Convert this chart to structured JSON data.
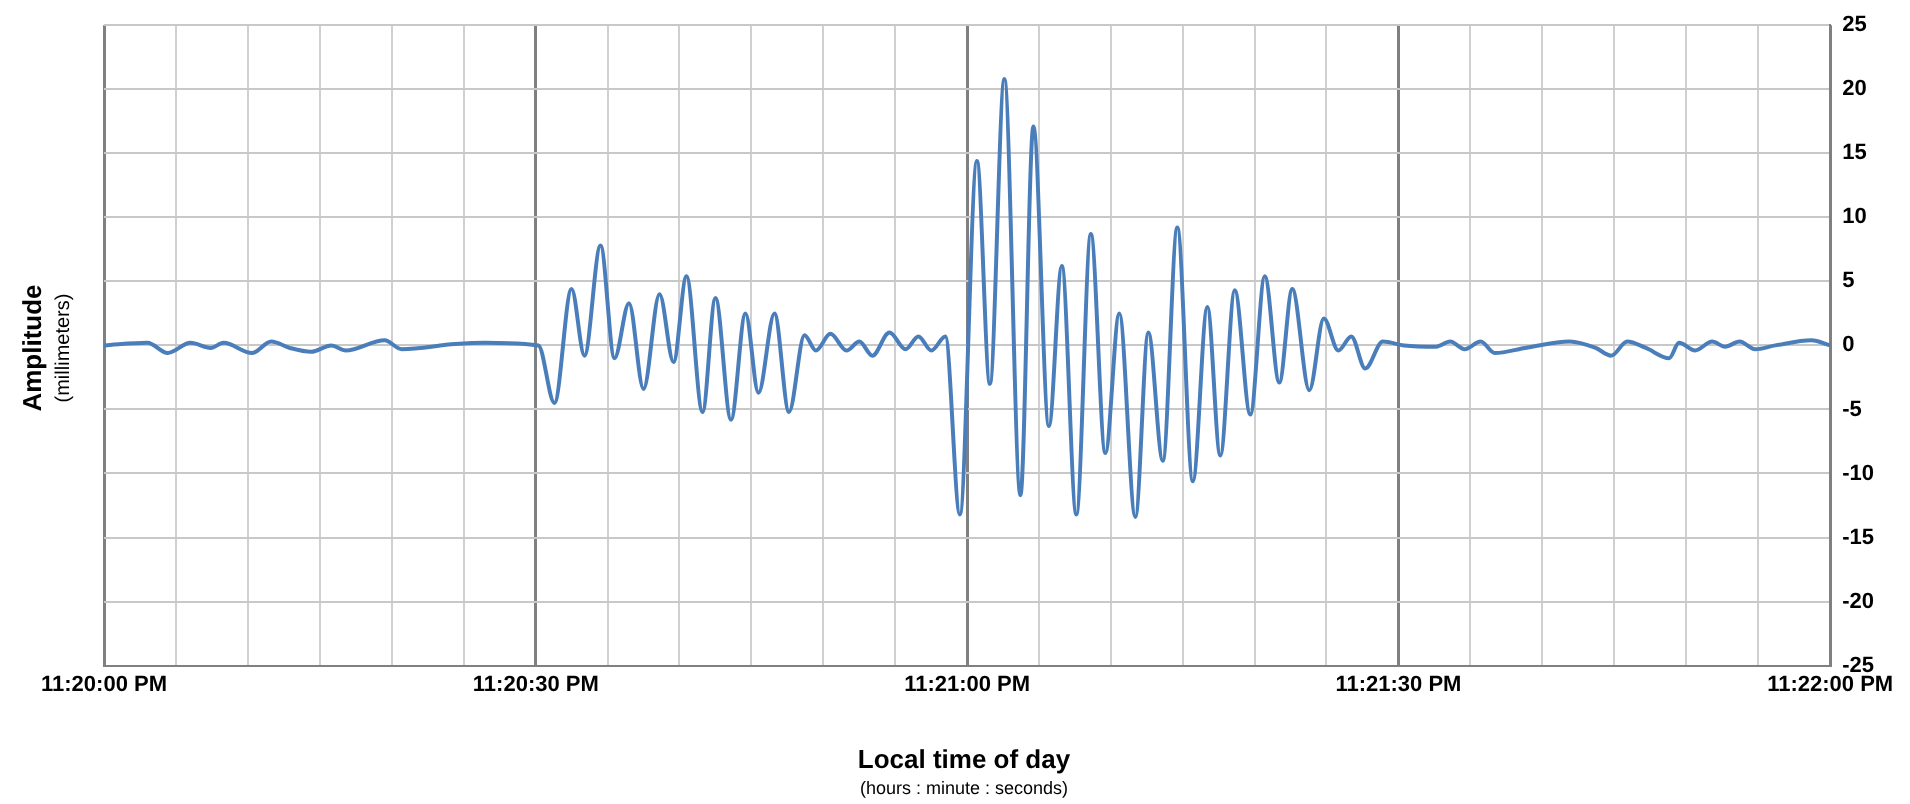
{
  "chart_data": {
    "type": "line",
    "xlabel": "Local time of day",
    "ylabel": "Amplitude",
    "annotations": [
      "(millimeters)",
      "(hours : minute : seconds)"
    ],
    "xlim": [
      23.33333,
      23.36667
    ],
    "xticks": [
      {
        "value": 23.33333,
        "label": "11:20:00 PM"
      },
      {
        "value": 23.33472,
        "label": null
      },
      {
        "value": 23.33611,
        "label": null
      },
      {
        "value": 23.3375,
        "label": null
      },
      {
        "value": 23.33889,
        "label": null
      },
      {
        "value": 23.34028,
        "label": null
      },
      {
        "value": 23.34167,
        "label": "11:20:30 PM"
      },
      {
        "value": 23.34306,
        "label": null
      },
      {
        "value": 23.34444,
        "label": null
      },
      {
        "value": 23.34583,
        "label": null
      },
      {
        "value": 23.34722,
        "label": null
      },
      {
        "value": 23.34861,
        "label": null
      },
      {
        "value": 23.35,
        "label": "11:21:00 PM"
      },
      {
        "value": 23.35139,
        "label": null
      },
      {
        "value": 23.35278,
        "label": null
      },
      {
        "value": 23.35417,
        "label": null
      },
      {
        "value": 23.35556,
        "label": null
      },
      {
        "value": 23.35694,
        "label": null
      },
      {
        "value": 23.35833,
        "label": "11:21:30 PM"
      },
      {
        "value": 23.35972,
        "label": null
      },
      {
        "value": 23.36111,
        "label": null
      },
      {
        "value": 23.3625,
        "label": null
      },
      {
        "value": 23.36389,
        "label": null
      },
      {
        "value": 23.36528,
        "label": null
      },
      {
        "value": 23.36667,
        "label": "11:22:00 PM"
      }
    ],
    "ylim": [
      -25,
      25
    ],
    "yticks": [
      -25,
      -20,
      -15,
      -10,
      -5,
      0,
      5,
      10,
      15,
      20,
      25
    ],
    "grid": true,
    "legend": false,
    "marker": "none",
    "line_style": "solid",
    "series": [
      {
        "color": "#4a7ebb",
        "x": [
          23.33333,
          23.33417,
          23.33456,
          23.335,
          23.33539,
          23.33564,
          23.33619,
          23.33656,
          23.33692,
          23.33733,
          23.33772,
          23.338,
          23.33875,
          23.33908,
          23.34011,
          23.34069,
          23.34172,
          23.34203,
          23.34236,
          23.34261,
          23.34292,
          23.34319,
          23.34347,
          23.34375,
          23.34406,
          23.34433,
          23.34458,
          23.34489,
          23.34514,
          23.34544,
          23.34572,
          23.34597,
          23.34628,
          23.34656,
          23.34686,
          23.34708,
          23.34736,
          23.34767,
          23.34792,
          23.34817,
          23.3485,
          23.34881,
          23.34906,
          23.34931,
          23.34958,
          23.34986,
          23.35019,
          23.35044,
          23.35072,
          23.35103,
          23.35128,
          23.35158,
          23.35183,
          23.35211,
          23.35239,
          23.35267,
          23.35294,
          23.35325,
          23.3535,
          23.35378,
          23.35406,
          23.35436,
          23.35464,
          23.35489,
          23.35517,
          23.35547,
          23.35575,
          23.35603,
          23.35628,
          23.35661,
          23.35689,
          23.35717,
          23.35742,
          23.35769,
          23.35803,
          23.35844,
          23.35906,
          23.35933,
          23.35961,
          23.35992,
          23.36019,
          23.36078,
          23.36164,
          23.36214,
          23.36244,
          23.36275,
          23.36311,
          23.36356,
          23.36375,
          23.36406,
          23.36439,
          23.36464,
          23.36492,
          23.36522,
          23.36561,
          23.36631,
          23.36667
        ],
        "values": [
          0,
          0.2,
          -0.6,
          0.2,
          -0.2,
          0.2,
          -0.6,
          0.3,
          -0.2,
          -0.5,
          0,
          -0.4,
          0.4,
          -0.3,
          0.1,
          0.2,
          0,
          -4.5,
          4.4,
          -0.8,
          7.8,
          -1,
          3.3,
          -3.4,
          4,
          -1.3,
          5.4,
          -5.2,
          3.7,
          -5.8,
          2.5,
          -3.7,
          2.5,
          -5.2,
          0.8,
          -0.4,
          0.9,
          -0.4,
          0.3,
          -0.8,
          1,
          -0.3,
          0.7,
          -0.4,
          0.7,
          -13.2,
          14.4,
          -3,
          20.8,
          -11.7,
          17.1,
          -6.3,
          6.2,
          -13.2,
          8.7,
          -8.4,
          2.5,
          -13.4,
          1,
          -9,
          9.2,
          -10.6,
          3,
          -8.6,
          4.3,
          -5.4,
          5.4,
          -2.9,
          4.4,
          -3.5,
          2.1,
          -0.4,
          0.7,
          -1.8,
          0.3,
          0,
          -0.1,
          0.3,
          -0.3,
          0.3,
          -0.6,
          -0.2,
          0.3,
          -0.2,
          -0.8,
          0.3,
          -0.2,
          -1,
          0.2,
          -0.4,
          0.3,
          -0.1,
          0.3,
          -0.3,
          0,
          0.4,
          0
        ]
      }
    ]
  }
}
